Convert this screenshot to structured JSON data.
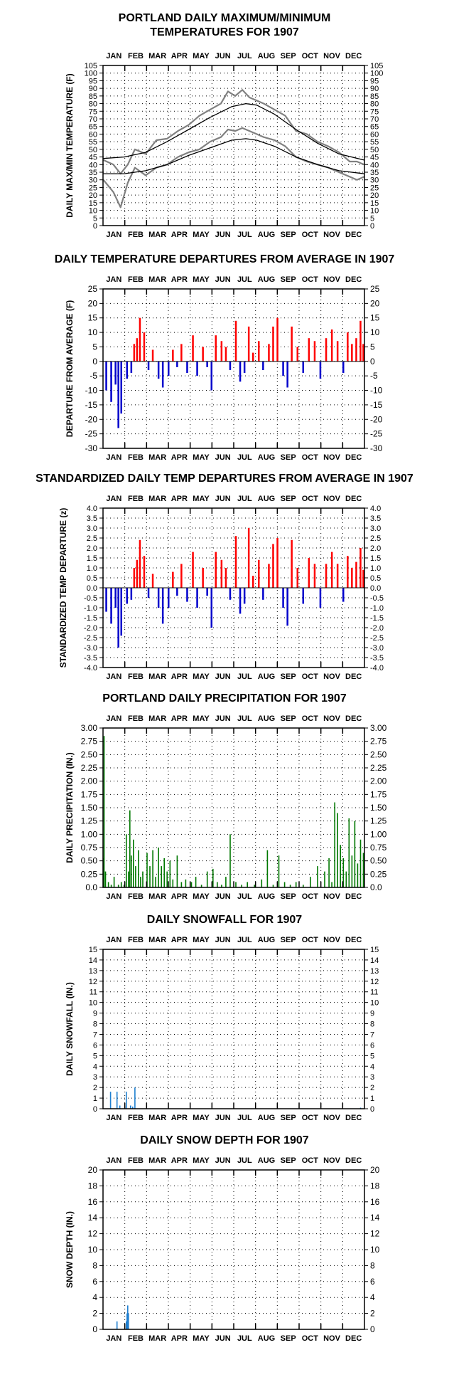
{
  "months": [
    "JAN",
    "FEB",
    "MAR",
    "APR",
    "MAY",
    "JUN",
    "JUL",
    "AUG",
    "SEP",
    "OCT",
    "NOV",
    "DEC"
  ],
  "colors": {
    "temp_daily": "#808080",
    "normal_line": "#000000",
    "warm": "#ff0000",
    "cold": "#0000cc",
    "precip": "#007700",
    "snow": "#1f7fd0",
    "grid_dots": "#000000"
  },
  "chart_data": [
    {
      "type": "line",
      "title_lines": [
        "PORTLAND DAILY MAXIMUM/MINIMUM",
        "TEMPERATURES FOR 1907"
      ],
      "ylabel": "DAILY MAX/MIN TEMPERATURE (F)",
      "ylim": [
        0,
        105
      ],
      "yticks": [
        "0",
        "5",
        "10",
        "15",
        "20",
        "25",
        "30",
        "35",
        "40",
        "45",
        "50",
        "55",
        "60",
        "65",
        "70",
        "75",
        "80",
        "85",
        "90",
        "95",
        "100",
        "105"
      ],
      "grid": true,
      "series": [
        {
          "style": "daily-max",
          "x": [
            1,
            15,
            25,
            35,
            45,
            60,
            75,
            90,
            105,
            120,
            135,
            150,
            165,
            175,
            185,
            195,
            205,
            215,
            225,
            240,
            255,
            270,
            285,
            300,
            315,
            330,
            345,
            355,
            365
          ],
          "values": [
            43,
            40,
            34,
            40,
            50,
            47,
            56,
            57,
            62,
            66,
            72,
            76,
            80,
            88,
            85,
            89,
            84,
            82,
            80,
            76,
            72,
            62,
            60,
            55,
            52,
            48,
            42,
            42,
            40
          ]
        },
        {
          "style": "daily-min",
          "x": [
            1,
            15,
            25,
            35,
            45,
            60,
            75,
            90,
            105,
            120,
            135,
            150,
            165,
            175,
            185,
            195,
            205,
            215,
            225,
            240,
            255,
            270,
            285,
            300,
            315,
            330,
            345,
            355,
            365
          ],
          "values": [
            30,
            22,
            12,
            28,
            38,
            33,
            38,
            40,
            45,
            48,
            50,
            55,
            58,
            63,
            62,
            64,
            62,
            60,
            58,
            56,
            52,
            45,
            42,
            40,
            38,
            35,
            32,
            30,
            32
          ]
        },
        {
          "style": "normal-max",
          "x": [
            1,
            30,
            60,
            90,
            120,
            150,
            180,
            200,
            215,
            240,
            270,
            300,
            330,
            365
          ],
          "values": [
            44,
            45,
            48,
            55,
            63,
            71,
            78,
            80,
            79,
            73,
            63,
            54,
            47,
            43
          ]
        },
        {
          "style": "normal-min",
          "x": [
            1,
            30,
            60,
            90,
            120,
            150,
            180,
            200,
            215,
            240,
            270,
            300,
            330,
            365
          ],
          "values": [
            34,
            34,
            36,
            40,
            46,
            51,
            56,
            57,
            56,
            52,
            45,
            40,
            36,
            34
          ]
        }
      ]
    },
    {
      "type": "bar",
      "title_lines": [
        "DAILY TEMPERATURE DEPARTURES FROM AVERAGE IN 1907"
      ],
      "ylabel": "DEPARTURE FROM AVERAGE (F)",
      "ylim": [
        -30,
        25
      ],
      "yticks": [
        "-30",
        "-25",
        "-20",
        "-15",
        "-10",
        "-5",
        "0",
        "5",
        "10",
        "15",
        "20",
        "25"
      ],
      "grid": true,
      "x": [
        5,
        12,
        18,
        22,
        26,
        34,
        40,
        44,
        48,
        52,
        58,
        64,
        70,
        78,
        84,
        92,
        98,
        104,
        110,
        118,
        126,
        132,
        140,
        146,
        152,
        158,
        166,
        172,
        178,
        186,
        192,
        198,
        204,
        210,
        218,
        224,
        232,
        238,
        244,
        252,
        258,
        264,
        272,
        280,
        288,
        296,
        304,
        312,
        320,
        328,
        336,
        342,
        348,
        354,
        360,
        364
      ],
      "values": [
        -10,
        -14,
        -8,
        -23,
        -18,
        -6,
        -4,
        6,
        8,
        15,
        10,
        -3,
        4,
        -6,
        -9,
        -5,
        4,
        -2,
        6,
        -4,
        9,
        -5,
        5,
        -2,
        -10,
        9,
        7,
        5,
        -3,
        14,
        -7,
        -4,
        12,
        3,
        7,
        -3,
        6,
        12,
        15,
        -5,
        -9,
        12,
        5,
        -4,
        8,
        7,
        -6,
        8,
        11,
        7,
        -4,
        10,
        6,
        8,
        14,
        6
      ]
    },
    {
      "type": "bar",
      "title_lines": [
        "STANDARDIZED DAILY TEMP DEPARTURES FROM AVERAGE IN 1907"
      ],
      "ylabel": "STANDARDIZED TEMP DEPARTURE (z)",
      "ylim": [
        -4.0,
        4.0
      ],
      "yticks": [
        "-4.0",
        "-3.5",
        "-3.0",
        "-2.5",
        "-2.0",
        "-1.5",
        "-1.0",
        "-0.5",
        "0.0",
        "0.5",
        "1.0",
        "1.5",
        "2.0",
        "2.5",
        "3.0",
        "3.5",
        "4.0"
      ],
      "grid": true,
      "x": [
        5,
        12,
        18,
        22,
        26,
        34,
        40,
        44,
        48,
        52,
        58,
        64,
        70,
        78,
        84,
        92,
        98,
        104,
        110,
        118,
        126,
        132,
        140,
        146,
        152,
        158,
        166,
        172,
        178,
        186,
        192,
        198,
        204,
        210,
        218,
        224,
        232,
        238,
        244,
        252,
        258,
        264,
        272,
        280,
        288,
        296,
        304,
        312,
        320,
        328,
        336,
        342,
        348,
        354,
        360,
        364
      ],
      "values": [
        -1.2,
        -1.8,
        -1.0,
        -3.0,
        -2.4,
        -0.8,
        -0.6,
        1.0,
        1.4,
        2.4,
        1.6,
        -0.5,
        0.7,
        -1.0,
        -1.8,
        -1.0,
        0.8,
        -0.4,
        1.2,
        -0.7,
        1.8,
        -1.0,
        1.0,
        -0.4,
        -2.0,
        1.8,
        1.4,
        1.0,
        -0.6,
        2.6,
        -1.3,
        -0.8,
        3.0,
        0.6,
        1.4,
        -0.6,
        1.2,
        2.2,
        2.5,
        -1.0,
        -1.9,
        2.4,
        1.0,
        -0.8,
        1.5,
        1.2,
        -1.0,
        1.2,
        1.8,
        1.2,
        -0.7,
        1.6,
        1.0,
        1.3,
        2.0,
        0.9
      ]
    },
    {
      "type": "bar",
      "title_lines": [
        "PORTLAND DAILY PRECIPITATION FOR 1907"
      ],
      "ylabel": "DAILY PRECIPITATION (IN.)",
      "ylim": [
        0,
        3.0
      ],
      "yticks": [
        "0.0",
        "0.25",
        "0.50",
        "0.75",
        "1.00",
        "1.25",
        "1.50",
        "1.75",
        "2.00",
        "2.25",
        "2.50",
        "2.75",
        "3.00"
      ],
      "grid": true,
      "x": [
        1,
        2,
        4,
        8,
        12,
        16,
        22,
        26,
        30,
        33,
        36,
        38,
        40,
        43,
        46,
        50,
        53,
        56,
        62,
        66,
        70,
        74,
        78,
        82,
        86,
        90,
        94,
        98,
        104,
        110,
        116,
        124,
        130,
        138,
        146,
        154,
        160,
        166,
        172,
        178,
        186,
        194,
        202,
        212,
        222,
        230,
        238,
        246,
        254,
        262,
        270,
        280,
        290,
        300,
        310,
        316,
        320,
        324,
        328,
        332,
        336,
        340,
        344,
        348,
        352,
        356,
        360,
        364
      ],
      "values": [
        0.55,
        2.85,
        0.3,
        0.1,
        0.05,
        0.2,
        0.05,
        0.1,
        0.05,
        1.0,
        0.3,
        1.45,
        0.6,
        0.9,
        0.4,
        0.7,
        0.2,
        0.3,
        0.65,
        0.4,
        0.7,
        0.2,
        0.75,
        0.4,
        0.55,
        0.3,
        0.5,
        0.15,
        0.6,
        0.1,
        0.15,
        0.1,
        0.2,
        0.05,
        0.3,
        0.35,
        0.1,
        0.05,
        0.2,
        1.0,
        0.1,
        0.05,
        0.1,
        0.05,
        0.15,
        0.7,
        0.05,
        0.6,
        0.1,
        0.05,
        0.1,
        0.05,
        0.2,
        0.4,
        0.3,
        0.55,
        0.1,
        1.6,
        1.4,
        0.8,
        0.55,
        0.3,
        1.3,
        0.6,
        1.25,
        0.45,
        0.9,
        0.65
      ]
    },
    {
      "type": "bar",
      "title_lines": [
        "DAILY SNOWFALL FOR 1907"
      ],
      "ylabel": "DAILY SNOWFALL (IN.)",
      "ylim": [
        0,
        15
      ],
      "yticks": [
        "0",
        "1",
        "2",
        "3",
        "4",
        "5",
        "6",
        "7",
        "8",
        "9",
        "10",
        "11",
        "12",
        "13",
        "14",
        "15"
      ],
      "grid": true,
      "x": [
        11,
        20,
        24,
        31,
        33,
        39,
        42,
        45,
        360
      ],
      "values": [
        1.6,
        1.6,
        0.3,
        0.2,
        1.6,
        0.3,
        0.2,
        2.0,
        0.1
      ]
    },
    {
      "type": "bar",
      "title_lines": [
        "DAILY SNOW DEPTH FOR 1907"
      ],
      "ylabel": "SNOW DEPTH (IN.)",
      "ylim": [
        0,
        20
      ],
      "yticks": [
        "0",
        "2",
        "4",
        "6",
        "8",
        "10",
        "12",
        "14",
        "16",
        "18",
        "20"
      ],
      "grid": true,
      "x": [
        20,
        33,
        34,
        35,
        36
      ],
      "values": [
        1.0,
        1.0,
        2.0,
        3.0,
        2.0
      ]
    }
  ]
}
